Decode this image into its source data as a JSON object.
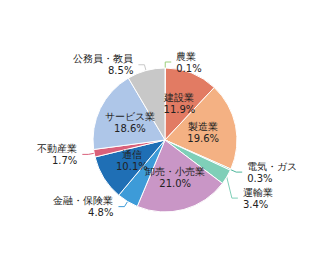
{
  "chart_data": {
    "type": "pie",
    "categories": [
      "農業",
      "建設業",
      "製造業",
      "電気・ガス",
      "運輸業",
      "卸売・小売業",
      "金融・保険業",
      "通信",
      "不動産業",
      "サービス業",
      "公務員・教員"
    ],
    "values": [
      0.1,
      11.9,
      19.6,
      0.3,
      3.4,
      21.0,
      4.8,
      10.1,
      1.7,
      18.6,
      8.5
    ],
    "value_labels": [
      "0.1%",
      "11.9%",
      "19.6%",
      "0.3%",
      "3.4%",
      "21.0%",
      "4.8%",
      "10.1%",
      "1.7%",
      "18.6%",
      "8.5%"
    ],
    "colors": [
      "#9ccf7a",
      "#e27b63",
      "#f4b183",
      "#4fb79c",
      "#7fcfb8",
      "#c996c6",
      "#3d9bd8",
      "#1f6fb5",
      "#d9607a",
      "#aec6e8",
      "#c8c8c8"
    ],
    "data_labels": true
  }
}
